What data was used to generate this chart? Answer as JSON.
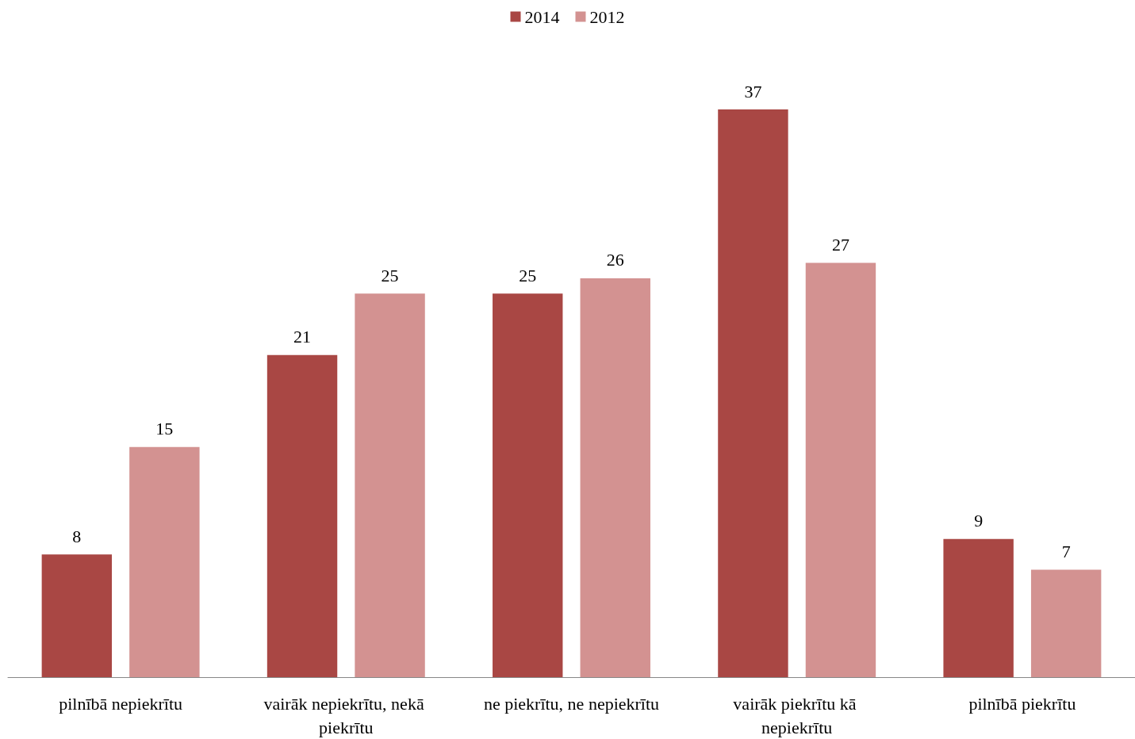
{
  "chart_data": {
    "type": "bar",
    "categories": [
      "pilnībā nepiekrītu",
      "vairāk nepiekrītu, nekā piekrītu",
      "ne piekrītu, ne nepiekrītu",
      "vairāk piekrītu kā nepiekrītu",
      "pilnībā piekrītu"
    ],
    "series": [
      {
        "name": "2014",
        "color": "#a94744",
        "values": [
          8,
          21,
          25,
          37,
          9
        ]
      },
      {
        "name": "2012",
        "color": "#d39291",
        "values": [
          15,
          25,
          26,
          27,
          7
        ]
      }
    ],
    "data_labels": true,
    "legend": "top"
  }
}
